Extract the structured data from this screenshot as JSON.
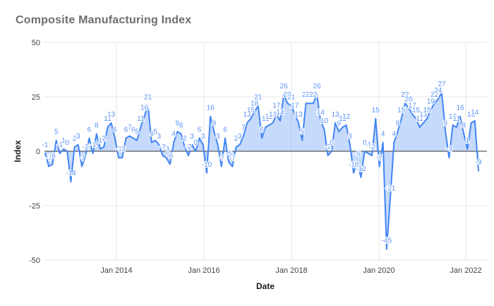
{
  "chart_data": {
    "type": "area",
    "title": "Composite Manufacturing Index",
    "xlabel": "Date",
    "ylabel": "Index",
    "ylim": [
      -50,
      50
    ],
    "yticks": [
      50,
      25,
      0,
      -25,
      -50
    ],
    "ytick_labels": [
      "50",
      "25",
      "0",
      "-25",
      "-50"
    ],
    "xtick_labels": [
      "Jan 2014",
      "Jan 2016",
      "Jan 2018",
      "Jan 2020",
      "Jan 2022"
    ],
    "grid": true,
    "legend_position": "none",
    "point_labels_shown": true,
    "values": [
      -1,
      -7,
      -6,
      5,
      -1,
      1,
      0,
      -14,
      2,
      3,
      -7,
      -2,
      6,
      -1,
      8,
      1,
      2,
      11,
      13,
      6,
      -3,
      -3,
      6,
      7,
      6,
      5,
      11,
      16,
      21,
      4,
      5,
      3,
      -2,
      -3,
      -6,
      4,
      9,
      8,
      2,
      -2,
      3,
      0,
      6,
      3,
      -10,
      16,
      9,
      3,
      -7,
      6,
      -5,
      -7,
      2,
      3,
      7,
      13,
      15,
      18,
      21,
      6,
      11,
      12,
      13,
      17,
      14,
      26,
      22,
      21,
      17,
      13,
      5,
      22,
      22,
      22,
      26,
      14,
      10,
      -2,
      0,
      13,
      9,
      11,
      12,
      3,
      -10,
      -5,
      -12,
      0,
      -1,
      -2,
      15,
      -7,
      4,
      -45,
      -21,
      4,
      9,
      15,
      22,
      20,
      17,
      15,
      11,
      13,
      15,
      19,
      22,
      24,
      27,
      9,
      -3,
      12,
      11,
      16,
      8,
      1,
      13,
      14,
      -9
    ],
    "colors": {
      "line": "#4285f4",
      "fill": "rgba(66,133,244,0.3)",
      "point_label": "#5a93f5",
      "grid": "#e6e6e6",
      "zero_line": "#333333",
      "tick_text": "#444444",
      "title_text": "#6e6e6e",
      "axis_title_text": "#1a1a1a"
    }
  }
}
